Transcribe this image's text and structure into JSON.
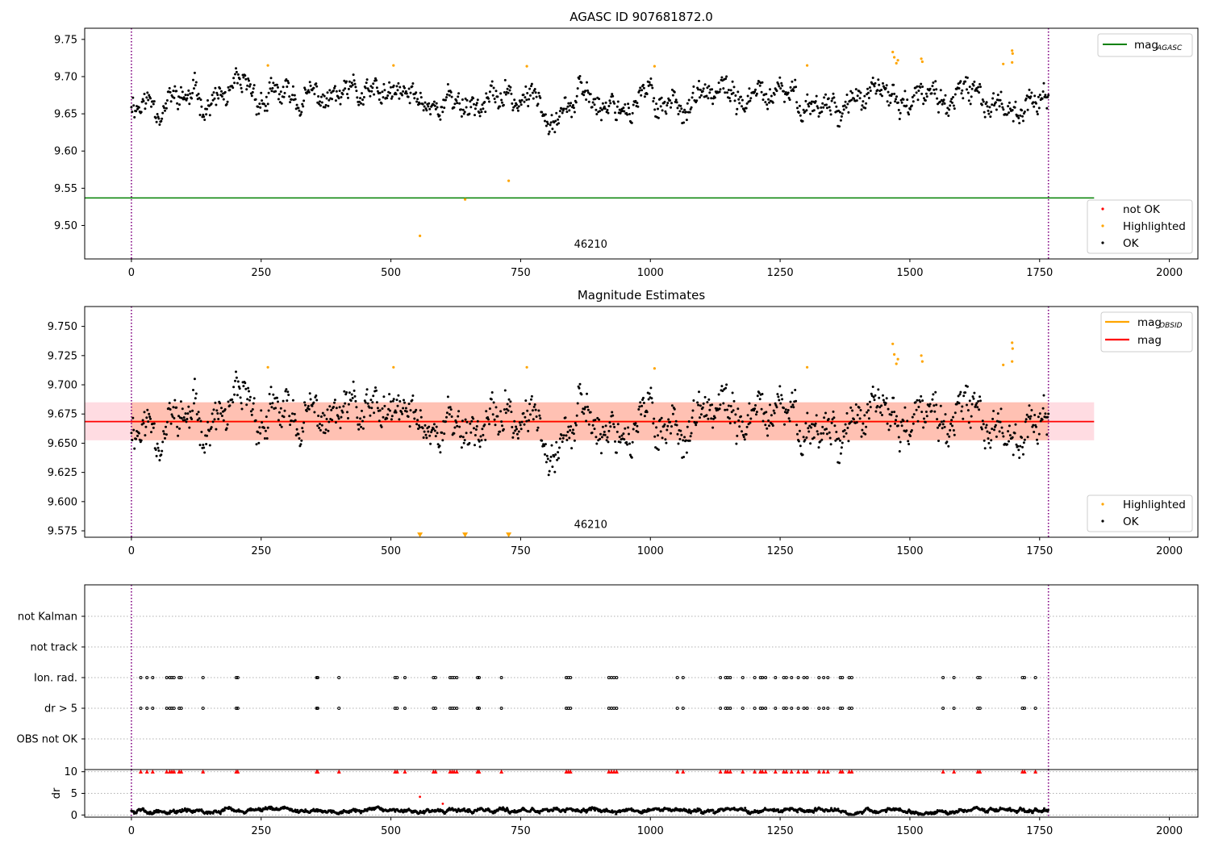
{
  "chart_data": [
    {
      "type": "scatter",
      "title": "AGASC ID 907681872.0",
      "xlim": [
        -90,
        2055
      ],
      "ylim": [
        9.455,
        9.765
      ],
      "x_ticks": [
        0,
        250,
        500,
        750,
        1000,
        1250,
        1500,
        1750,
        2000
      ],
      "x_tick_labels": [
        "0",
        "250",
        "500",
        "750",
        "1000",
        "1250",
        "1500",
        "1750",
        "2000"
      ],
      "y_ticks": [
        9.5,
        9.55,
        9.6,
        9.65,
        9.7,
        9.75
      ],
      "y_tick_labels": [
        "9.50",
        "9.55",
        "9.60",
        "9.65",
        "9.70",
        "9.75"
      ],
      "obsid_boundaries": [
        0,
        1767
      ],
      "obsid_label": "46210",
      "obsid_label_pos": [
        885,
        9.47
      ],
      "lines": [
        {
          "name": "mag_AGASC",
          "label_main": "mag",
          "label_sub": "AGASC",
          "y": 9.537,
          "x_range": [
            -90,
            1855
          ],
          "color": "#008000"
        }
      ],
      "legend_line_entries": [
        "mag_AGASC"
      ],
      "legend_scatter_entries": [
        {
          "name": "not OK",
          "color": "#ff0000"
        },
        {
          "name": "Highlighted",
          "color": "#ffa500"
        },
        {
          "name": "OK",
          "color": "#000000"
        }
      ],
      "series": [
        {
          "name": "OK",
          "color": "#000000",
          "generator": {
            "seed": 11,
            "base": 9.668,
            "amp": 0.02,
            "x_end": 1767,
            "step": 1.47
          }
        },
        {
          "name": "Highlighted",
          "color": "#ffa500",
          "points": [
            [
              263,
              9.715
            ],
            [
              505,
              9.715
            ],
            [
              556,
              9.486
            ],
            [
              643,
              9.535
            ],
            [
              727,
              9.56
            ],
            [
              762,
              9.714
            ],
            [
              1008,
              9.714
            ],
            [
              1302,
              9.715
            ],
            [
              1467,
              9.733
            ],
            [
              1470,
              9.726
            ],
            [
              1474,
              9.718
            ],
            [
              1477,
              9.722
            ],
            [
              1522,
              9.724
            ],
            [
              1524,
              9.72
            ],
            [
              1680,
              9.717
            ],
            [
              1697,
              9.735
            ],
            [
              1698,
              9.731
            ],
            [
              1697,
              9.719
            ]
          ]
        },
        {
          "name": "not OK",
          "color": "#ff0000",
          "points": []
        }
      ]
    },
    {
      "type": "scatter",
      "title": "Magnitude Estimates",
      "xlim": [
        -90,
        2055
      ],
      "ylim": [
        9.5695,
        9.767
      ],
      "x_ticks": [
        0,
        250,
        500,
        750,
        1000,
        1250,
        1500,
        1750,
        2000
      ],
      "x_tick_labels": [
        "0",
        "250",
        "500",
        "750",
        "1000",
        "1250",
        "1500",
        "1750",
        "2000"
      ],
      "y_ticks": [
        9.575,
        9.6,
        9.625,
        9.65,
        9.675,
        9.7,
        9.725,
        9.75
      ],
      "y_tick_labels": [
        "9.575",
        "9.600",
        "9.625",
        "9.650",
        "9.675",
        "9.700",
        "9.725",
        "9.750"
      ],
      "obsid_boundaries": [
        0,
        1767
      ],
      "obsid_label": "46210",
      "obsid_label_pos": [
        885,
        9.5775
      ],
      "bands": [
        {
          "name": "mag band",
          "y_range": [
            9.6525,
            9.685
          ],
          "x_range": [
            -90,
            1855
          ],
          "color": "#ffc0cb"
        },
        {
          "name": "mag_OBSID band",
          "y_range": [
            9.6525,
            9.685
          ],
          "x_range": [
            0,
            1767
          ],
          "color": "#ffa07a"
        }
      ],
      "lines": [
        {
          "name": "mag_OBSID",
          "label_main": "mag",
          "label_sub": "OBSID",
          "y": 9.6685,
          "x_range": [
            0,
            1767
          ],
          "color": "#ffa500"
        },
        {
          "name": "mag",
          "label_main": "mag",
          "label_sub": "",
          "y": 9.6685,
          "x_range": [
            -90,
            1855
          ],
          "color": "#ff0000"
        }
      ],
      "legend_line_entries": [
        "mag_OBSID",
        "mag"
      ],
      "legend_scatter_entries": [
        {
          "name": "Highlighted",
          "color": "#ffa500"
        },
        {
          "name": "OK",
          "color": "#000000"
        }
      ],
      "series": [
        {
          "name": "OK",
          "color": "#000000",
          "generator": {
            "seed": 11,
            "base": 9.668,
            "amp": 0.02,
            "x_end": 1767,
            "step": 1.47
          }
        },
        {
          "name": "Highlighted",
          "color": "#ffa500",
          "points": [
            [
              263,
              9.715
            ],
            [
              505,
              9.715
            ],
            [
              762,
              9.715
            ],
            [
              1008,
              9.714
            ],
            [
              1302,
              9.715
            ],
            [
              1467,
              9.735
            ],
            [
              1470,
              9.726
            ],
            [
              1474,
              9.718
            ],
            [
              1477,
              9.722
            ],
            [
              1522,
              9.725
            ],
            [
              1524,
              9.72
            ],
            [
              1680,
              9.717
            ],
            [
              1697,
              9.736
            ],
            [
              1698,
              9.731
            ],
            [
              1697,
              9.72
            ]
          ]
        },
        {
          "name": "Highlighted lower limits",
          "color": "#ffa500",
          "marker": "triangle-down",
          "points": [
            [
              556,
              9.5715
            ],
            [
              643,
              9.5715
            ],
            [
              727,
              9.5715
            ]
          ]
        }
      ]
    },
    {
      "type": "scatter",
      "title": "",
      "xlim": [
        -90,
        2055
      ],
      "categories": [
        "not Kalman",
        "not track",
        "Ion. rad.",
        "dr > 5",
        "OBS not OK"
      ],
      "obsid_boundaries": [
        0,
        1767
      ],
      "flag_x_values": [
        18,
        30,
        41,
        68,
        74,
        78,
        82,
        92,
        96,
        138,
        202,
        205,
        357,
        359,
        400,
        508,
        512,
        527,
        582,
        586,
        614,
        618,
        622,
        627,
        667,
        670,
        713,
        838,
        842,
        846,
        920,
        925,
        930,
        935,
        1052,
        1063,
        1135,
        1145,
        1149,
        1154,
        1178,
        1201,
        1212,
        1216,
        1222,
        1241,
        1257,
        1262,
        1272,
        1285,
        1296,
        1302,
        1325,
        1334,
        1342,
        1366,
        1370,
        1383,
        1388,
        1564,
        1585,
        1631,
        1635,
        1717,
        1721,
        1742
      ],
      "flag_rows": {
        "Ion. rad.": "flag_x_values",
        "dr > 5": "flag_x_values"
      }
    },
    {
      "type": "scatter",
      "title": "",
      "xlim": [
        -90,
        2055
      ],
      "ylim": [
        -0.5,
        10.5
      ],
      "ylabel": "dr",
      "x_ticks": [
        0,
        250,
        500,
        750,
        1000,
        1250,
        1500,
        1750,
        2000
      ],
      "x_tick_labels": [
        "0",
        "250",
        "500",
        "750",
        "1000",
        "1250",
        "1500",
        "1750",
        "2000"
      ],
      "y_ticks": [
        0,
        5,
        10
      ],
      "y_tick_labels": [
        "0",
        "5",
        "10"
      ],
      "obsid_boundaries": [
        0,
        1767
      ],
      "series": [
        {
          "name": "dr",
          "color": "#000000",
          "generator": {
            "seed": 5,
            "base": 1.0,
            "amp": 0.5,
            "x_end": 1767,
            "step": 1.1
          }
        },
        {
          "name": "dr outliers",
          "color": "#ff0000",
          "points": [
            [
              556,
              4.2
            ],
            [
              600,
              2.6
            ]
          ]
        },
        {
          "name": "dr > 10 (capped)",
          "color": "#ff0000",
          "marker": "triangle-up",
          "y": 10,
          "x_ref": "flag_x_values"
        }
      ]
    }
  ]
}
